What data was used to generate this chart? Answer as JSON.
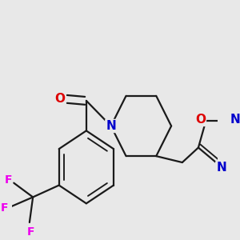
{
  "bg_color": "#e8e8e8",
  "bond_color": "#1a1a1a",
  "bond_width": 1.6,
  "dbo": 0.012,
  "atom_colors": {
    "O": "#dd0000",
    "N": "#0000cc",
    "F": "#ee00ee",
    "C": "#1a1a1a"
  },
  "font_size_atom": 11,
  "font_size_F": 10
}
